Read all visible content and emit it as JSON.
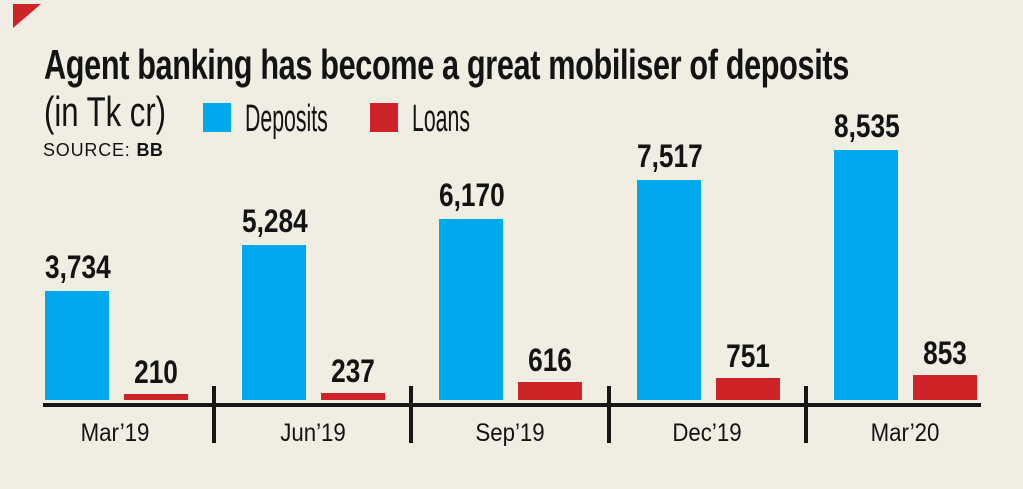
{
  "background": "#f0ede3",
  "header": {
    "title": "Agent banking has become a great mobiliser of deposits",
    "subtitle": "(in Tk cr)",
    "source_label": "SOURCE:",
    "source_value": "BB"
  },
  "legend": [
    {
      "label": "Deposits",
      "color": "#00a9ee"
    },
    {
      "label": "Loans",
      "color": "#ce2428"
    }
  ],
  "colors": {
    "deposits": "#00a9ee",
    "loans": "#ce2428",
    "text": "#131313",
    "axis": "#161616",
    "corner_accent": "#ce2428"
  },
  "chart_data": {
    "type": "bar",
    "title": "Agent banking has become a great mobiliser of deposits",
    "unit": "Tk cr",
    "categories": [
      "Mar’19",
      "Jun’19",
      "Sep’19",
      "Dec’19",
      "Mar’20"
    ],
    "series": [
      {
        "name": "Deposits",
        "color": "#00a9ee",
        "values": [
          3734,
          5284,
          6170,
          7517,
          8535
        ],
        "labels": [
          "3,734",
          "5,284",
          "6,170",
          "7,517",
          "8,535"
        ]
      },
      {
        "name": "Loans",
        "color": "#ce2428",
        "values": [
          210,
          237,
          616,
          751,
          853
        ],
        "labels": [
          "210",
          "237",
          "616",
          "751",
          "853"
        ]
      }
    ],
    "ylim": [
      0,
      8535
    ],
    "grid": false,
    "legend_position": "top",
    "value_labels": true,
    "xlabel": "",
    "ylabel": ""
  }
}
